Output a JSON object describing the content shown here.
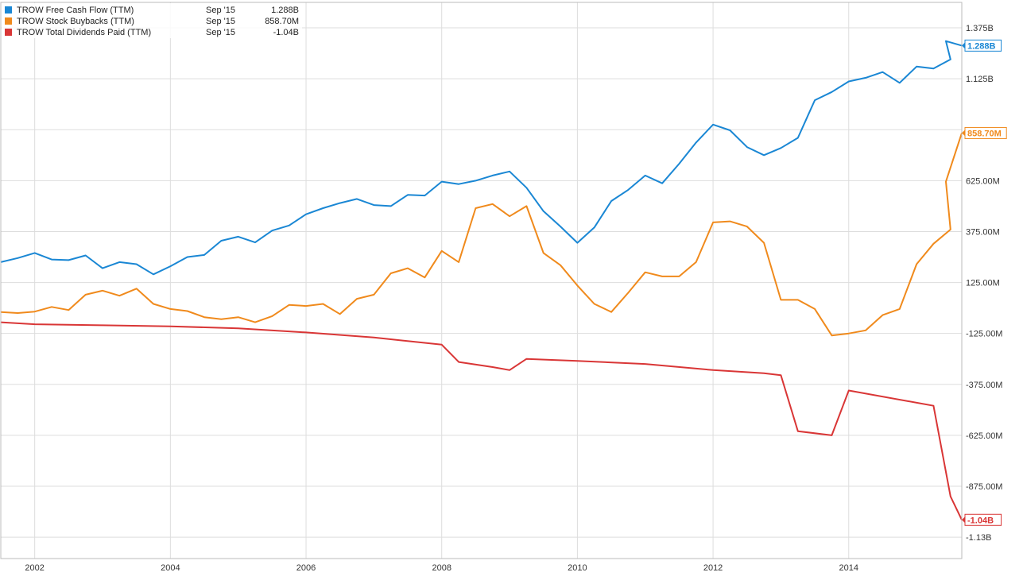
{
  "chart_data": {
    "type": "line",
    "x_axis": {
      "ticks": [
        "2002",
        "2004",
        "2006",
        "2008",
        "2010",
        "2012",
        "2014"
      ],
      "range": [
        "2001-07",
        "2015-09"
      ]
    },
    "y_axis": {
      "ticks": [
        "1.375B",
        "1.125B",
        "875.00M",
        "625.00M",
        "375.00M",
        "125.00M",
        "-125.00M",
        "-375.00M",
        "-625.00M",
        "-875.00M",
        "-1.13B"
      ],
      "tick_values": [
        1.375,
        1.125,
        0.875,
        0.625,
        0.375,
        0.125,
        -0.125,
        -0.375,
        -0.625,
        -0.875,
        -1.125
      ],
      "unit": "billions USD",
      "range": [
        -1.23,
        1.5
      ],
      "position": "right"
    },
    "grid": true,
    "legend": "top-left",
    "series": [
      {
        "name": "TROW Free Cash Flow (TTM)",
        "color": "#1a87d4",
        "last_date": "Sep '15",
        "last_value_label": "1.288B",
        "end_tag": "1.288B",
        "points": [
          [
            "2001-07",
            0.225
          ],
          [
            "2001-10",
            0.245
          ],
          [
            "2002-01",
            0.27
          ],
          [
            "2002-04",
            0.238
          ],
          [
            "2002-07",
            0.235
          ],
          [
            "2002-10",
            0.258
          ],
          [
            "2003-01",
            0.195
          ],
          [
            "2003-04",
            0.225
          ],
          [
            "2003-07",
            0.215
          ],
          [
            "2003-10",
            0.165
          ],
          [
            "2004-01",
            0.205
          ],
          [
            "2004-04",
            0.25
          ],
          [
            "2004-07",
            0.26
          ],
          [
            "2004-10",
            0.33
          ],
          [
            "2005-01",
            0.35
          ],
          [
            "2005-04",
            0.322
          ],
          [
            "2005-07",
            0.38
          ],
          [
            "2005-10",
            0.405
          ],
          [
            "2006-01",
            0.46
          ],
          [
            "2006-04",
            0.49
          ],
          [
            "2006-07",
            0.515
          ],
          [
            "2006-10",
            0.535
          ],
          [
            "2007-01",
            0.505
          ],
          [
            "2007-04",
            0.5
          ],
          [
            "2007-07",
            0.555
          ],
          [
            "2007-10",
            0.552
          ],
          [
            "2008-01",
            0.62
          ],
          [
            "2008-04",
            0.608
          ],
          [
            "2008-07",
            0.625
          ],
          [
            "2008-10",
            0.65
          ],
          [
            "2009-01",
            0.67
          ],
          [
            "2009-04",
            0.59
          ],
          [
            "2009-07",
            0.475
          ],
          [
            "2009-10",
            0.4
          ],
          [
            "2010-01",
            0.32
          ],
          [
            "2010-04",
            0.395
          ],
          [
            "2010-07",
            0.525
          ],
          [
            "2010-10",
            0.58
          ],
          [
            "2011-01",
            0.65
          ],
          [
            "2011-04",
            0.612
          ],
          [
            "2011-07",
            0.708
          ],
          [
            "2011-10",
            0.812
          ],
          [
            "2012-01",
            0.9
          ],
          [
            "2012-04",
            0.872
          ],
          [
            "2012-07",
            0.79
          ],
          [
            "2012-10",
            0.75
          ],
          [
            "2013-01",
            0.785
          ],
          [
            "2013-04",
            0.835
          ],
          [
            "2013-07",
            1.02
          ],
          [
            "2013-10",
            1.06
          ],
          [
            "2014-01",
            1.112
          ],
          [
            "2014-04",
            1.13
          ],
          [
            "2014-07",
            1.158
          ],
          [
            "2014-10",
            1.105
          ],
          [
            "2015-01",
            1.185
          ],
          [
            "2015-04",
            1.175
          ],
          [
            "2015-07",
            1.22
          ],
          [
            "2015-09",
            1.31
          ],
          [
            "2015-09",
            1.288
          ]
        ]
      },
      {
        "name": "TROW Stock Buybacks (TTM)",
        "color": "#f08a1c",
        "last_date": "Sep '15",
        "last_value_label": "858.70M",
        "end_tag": "858.70M",
        "points": [
          [
            "2001-07",
            -0.02
          ],
          [
            "2001-10",
            -0.025
          ],
          [
            "2002-01",
            -0.018
          ],
          [
            "2002-04",
            0.005
          ],
          [
            "2002-07",
            -0.01
          ],
          [
            "2002-10",
            0.065
          ],
          [
            "2003-01",
            0.085
          ],
          [
            "2003-04",
            0.06
          ],
          [
            "2003-07",
            0.095
          ],
          [
            "2003-10",
            0.02
          ],
          [
            "2004-01",
            -0.005
          ],
          [
            "2004-04",
            -0.015
          ],
          [
            "2004-07",
            -0.045
          ],
          [
            "2004-10",
            -0.055
          ],
          [
            "2005-01",
            -0.045
          ],
          [
            "2005-04",
            -0.07
          ],
          [
            "2005-07",
            -0.04
          ],
          [
            "2005-10",
            0.015
          ],
          [
            "2006-01",
            0.01
          ],
          [
            "2006-04",
            0.02
          ],
          [
            "2006-07",
            -0.03
          ],
          [
            "2006-10",
            0.045
          ],
          [
            "2007-01",
            0.065
          ],
          [
            "2007-04",
            0.17
          ],
          [
            "2007-07",
            0.195
          ],
          [
            "2007-10",
            0.15
          ],
          [
            "2008-01",
            0.28
          ],
          [
            "2008-04",
            0.225
          ],
          [
            "2008-07",
            0.49
          ],
          [
            "2008-10",
            0.51
          ],
          [
            "2009-01",
            0.45
          ],
          [
            "2009-04",
            0.5
          ],
          [
            "2009-07",
            0.27
          ],
          [
            "2009-10",
            0.21
          ],
          [
            "2010-01",
            0.11
          ],
          [
            "2010-04",
            0.02
          ],
          [
            "2010-07",
            -0.02
          ],
          [
            "2010-10",
            0.075
          ],
          [
            "2011-01",
            0.175
          ],
          [
            "2011-04",
            0.155
          ],
          [
            "2011-07",
            0.155
          ],
          [
            "2011-10",
            0.225
          ],
          [
            "2012-01",
            0.42
          ],
          [
            "2012-04",
            0.425
          ],
          [
            "2012-07",
            0.4
          ],
          [
            "2012-10",
            0.32
          ],
          [
            "2013-01",
            0.04
          ],
          [
            "2013-04",
            0.04
          ],
          [
            "2013-07",
            -0.005
          ],
          [
            "2013-10",
            -0.135
          ],
          [
            "2014-01",
            -0.125
          ],
          [
            "2014-04",
            -0.11
          ],
          [
            "2014-07",
            -0.035
          ],
          [
            "2014-10",
            -0.005
          ],
          [
            "2015-01",
            0.215
          ],
          [
            "2015-04",
            0.315
          ],
          [
            "2015-07",
            0.385
          ],
          [
            "2015-09",
            0.62
          ],
          [
            "2015-09",
            0.8587
          ]
        ]
      },
      {
        "name": "TROW Total Dividends Paid (TTM)",
        "color": "#d93636",
        "last_date": "Sep '15",
        "last_value_label": "-1.04B",
        "end_tag": "-1.04B",
        "points": [
          [
            "2001-07",
            -0.07
          ],
          [
            "2002-01",
            -0.08
          ],
          [
            "2003-01",
            -0.085
          ],
          [
            "2004-01",
            -0.09
          ],
          [
            "2005-01",
            -0.1
          ],
          [
            "2006-01",
            -0.12
          ],
          [
            "2007-01",
            -0.145
          ],
          [
            "2008-01",
            -0.18
          ],
          [
            "2008-04",
            -0.265
          ],
          [
            "2008-10",
            -0.29
          ],
          [
            "2009-01",
            -0.305
          ],
          [
            "2009-04",
            -0.25
          ],
          [
            "2010-01",
            -0.26
          ],
          [
            "2011-01",
            -0.275
          ],
          [
            "2012-01",
            -0.305
          ],
          [
            "2012-10",
            -0.32
          ],
          [
            "2013-01",
            -0.33
          ],
          [
            "2013-04",
            -0.605
          ],
          [
            "2013-10",
            -0.625
          ],
          [
            "2014-01",
            -0.405
          ],
          [
            "2015-04",
            -0.48
          ],
          [
            "2015-07",
            -0.925
          ],
          [
            "2015-09",
            -1.04
          ]
        ]
      }
    ]
  }
}
